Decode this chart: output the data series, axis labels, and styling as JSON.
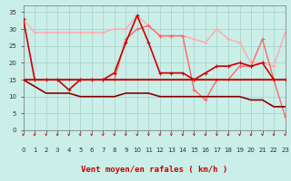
{
  "bg_color": "#caeee8",
  "grid_color": "#aad4cc",
  "xlabel": "Vent moyen/en rafales ( km/h )",
  "xlabel_color": "#cc0000",
  "ylim": [
    0,
    37
  ],
  "xlim": [
    0,
    23
  ],
  "yticks": [
    0,
    5,
    10,
    15,
    20,
    25,
    30,
    35
  ],
  "xticks": [
    0,
    1,
    2,
    3,
    4,
    5,
    6,
    7,
    8,
    9,
    10,
    11,
    12,
    13,
    14,
    15,
    16,
    17,
    18,
    19,
    20,
    21,
    22,
    23
  ],
  "lines": [
    {
      "name": "gust_light",
      "x": [
        0,
        1,
        2,
        3,
        4,
        5,
        6,
        7,
        8,
        9,
        10,
        11,
        12,
        13,
        14,
        15,
        16,
        17,
        18,
        19,
        20,
        21,
        22,
        23
      ],
      "y": [
        33,
        29,
        29,
        29,
        29,
        29,
        29,
        29,
        30,
        30,
        34,
        31,
        28,
        28,
        28,
        27,
        26,
        30,
        27,
        26,
        20,
        20,
        19,
        29
      ],
      "color": "#ffaaaa",
      "lw": 1.0,
      "marker": "+",
      "ms": 3,
      "zorder": 2
    },
    {
      "name": "gust_medium",
      "x": [
        0,
        1,
        2,
        3,
        4,
        5,
        6,
        7,
        8,
        9,
        10,
        11,
        12,
        13,
        14,
        15,
        16,
        17,
        18,
        19,
        20,
        21,
        22,
        23
      ],
      "y": [
        15,
        15,
        15,
        15,
        15,
        15,
        15,
        15,
        15,
        27,
        30,
        31,
        28,
        28,
        28,
        12,
        9,
        15,
        15,
        19,
        19,
        27,
        15,
        4
      ],
      "color": "#ff6666",
      "lw": 1.0,
      "marker": "+",
      "ms": 3,
      "zorder": 3
    },
    {
      "name": "wind_flat",
      "x": [
        0,
        1,
        2,
        3,
        4,
        5,
        6,
        7,
        8,
        9,
        10,
        11,
        12,
        13,
        14,
        15,
        16,
        17,
        18,
        19,
        20,
        21,
        22,
        23
      ],
      "y": [
        15,
        15,
        15,
        15,
        15,
        15,
        15,
        15,
        15,
        15,
        15,
        15,
        15,
        15,
        15,
        15,
        15,
        15,
        15,
        15,
        15,
        15,
        15,
        15
      ],
      "color": "#cc0000",
      "lw": 1.5,
      "marker": null,
      "ms": 0,
      "zorder": 4
    },
    {
      "name": "wind_mean",
      "x": [
        0,
        1,
        2,
        3,
        4,
        5,
        6,
        7,
        8,
        9,
        10,
        11,
        12,
        13,
        14,
        15,
        16,
        17,
        18,
        19,
        20,
        21,
        22,
        23
      ],
      "y": [
        33,
        15,
        15,
        15,
        12,
        15,
        15,
        15,
        17,
        26,
        34,
        26,
        17,
        17,
        17,
        15,
        17,
        19,
        19,
        20,
        19,
        20,
        15,
        15
      ],
      "color": "#cc0000",
      "lw": 1.2,
      "marker": "+",
      "ms": 3,
      "zorder": 5
    },
    {
      "name": "wind_min",
      "x": [
        0,
        1,
        2,
        3,
        4,
        5,
        6,
        7,
        8,
        9,
        10,
        11,
        12,
        13,
        14,
        15,
        16,
        17,
        18,
        19,
        20,
        21,
        22,
        23
      ],
      "y": [
        15,
        13,
        11,
        11,
        11,
        10,
        10,
        10,
        10,
        11,
        11,
        11,
        10,
        10,
        10,
        10,
        10,
        10,
        10,
        10,
        9,
        9,
        7,
        7
      ],
      "color": "#880000",
      "lw": 1.2,
      "marker": null,
      "ms": 0,
      "zorder": 3
    }
  ],
  "arrow_color": "#cc0000",
  "tick_fontsize": 5,
  "xlabel_fontsize": 6.5
}
